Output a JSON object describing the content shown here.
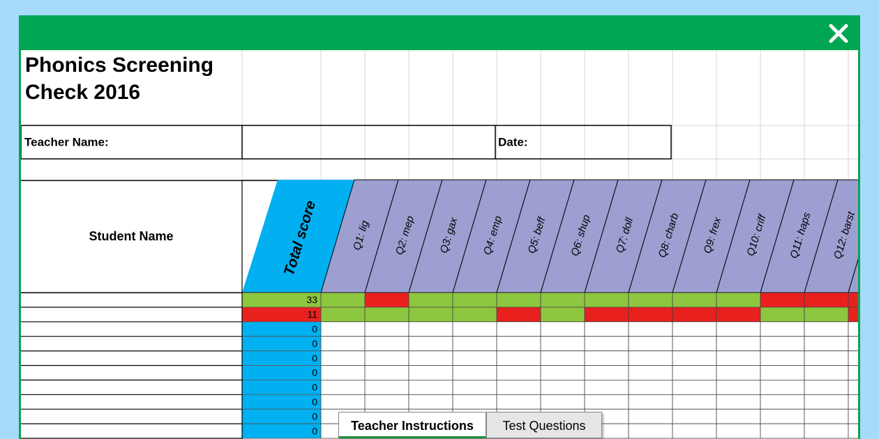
{
  "sheet": {
    "title": "Phonics Screening Check 2016",
    "teacher_label": "Teacher Name:",
    "date_label": "Date:",
    "student_header": "Student Name",
    "total_header": "Total score",
    "total_header_color": "#00b0f0",
    "question_header_color": "#9d9fd1",
    "questions": [
      "Q1: lig",
      "Q2: mep",
      "Q3: gax",
      "Q4: emp",
      "Q5: beff",
      "Q6: shup",
      "Q7: doll",
      "Q8: charb",
      "Q9: frex",
      "Q10: criff",
      "Q11: haps",
      "Q12: barst",
      null
    ],
    "rows": [
      {
        "total": 33,
        "color": "#8dc63f",
        "cells": [
          "#8dc63f",
          "#e8211f",
          "#8dc63f",
          "#8dc63f",
          "#8dc63f",
          "#8dc63f",
          "#8dc63f",
          "#8dc63f",
          "#8dc63f",
          "#8dc63f",
          "#e8211f",
          "#e8211f",
          "#e8211f"
        ]
      },
      {
        "total": 11,
        "color": "#e8211f",
        "cells": [
          "#8dc63f",
          "#8dc63f",
          "#8dc63f",
          "#8dc63f",
          "#e8211f",
          "#8dc63f",
          "#e8211f",
          "#e8211f",
          "#e8211f",
          "#e8211f",
          "#8dc63f",
          "#8dc63f",
          "#e8211f"
        ]
      },
      {
        "total": 0,
        "color": "#00b0f0",
        "cells": [
          null,
          null,
          null,
          null,
          null,
          null,
          null,
          null,
          null,
          null,
          null,
          null,
          null
        ]
      },
      {
        "total": 0,
        "color": "#00b0f0",
        "cells": [
          null,
          null,
          null,
          null,
          null,
          null,
          null,
          null,
          null,
          null,
          null,
          null,
          null
        ]
      },
      {
        "total": 0,
        "color": "#00b0f0",
        "cells": [
          null,
          null,
          null,
          null,
          null,
          null,
          null,
          null,
          null,
          null,
          null,
          null,
          null
        ]
      },
      {
        "total": 0,
        "color": "#00b0f0",
        "cells": [
          null,
          null,
          null,
          null,
          null,
          null,
          null,
          null,
          null,
          null,
          null,
          null,
          null
        ]
      },
      {
        "total": 0,
        "color": "#00b0f0",
        "cells": [
          null,
          null,
          null,
          null,
          null,
          null,
          null,
          null,
          null,
          null,
          null,
          null,
          null
        ]
      },
      {
        "total": 0,
        "color": "#00b0f0",
        "cells": [
          null,
          null,
          null,
          null,
          null,
          null,
          null,
          null,
          null,
          null,
          null,
          null,
          null
        ]
      },
      {
        "total": 0,
        "color": "#00b0f0",
        "cells": [
          null,
          null,
          null,
          null,
          null,
          null,
          null,
          null,
          null,
          null,
          null,
          null,
          null
        ]
      },
      {
        "total": 0,
        "color": "#00b0f0",
        "cells": [
          null,
          null,
          null,
          null,
          null,
          null,
          null,
          null,
          null,
          null,
          null,
          null,
          null
        ]
      }
    ]
  },
  "tabs": [
    {
      "label": "Teacher Instructions",
      "active": true
    },
    {
      "label": "Test Questions",
      "active": false
    }
  ]
}
